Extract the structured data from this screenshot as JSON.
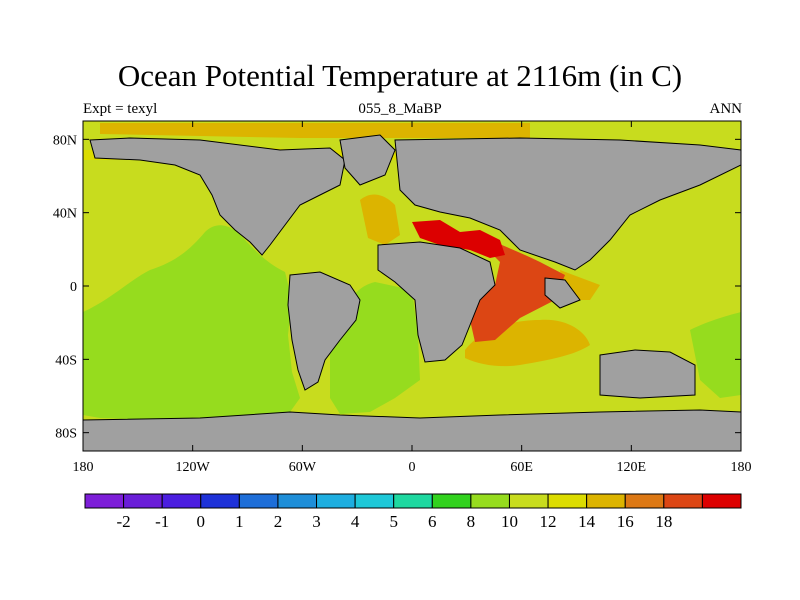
{
  "header": {
    "title": "Ocean Potential Temperature at 2116m (in C)",
    "left_label": "Expt = texyl",
    "center_label": "055_8_MaBP",
    "right_label": "ANN"
  },
  "map": {
    "projection": "cylindrical-equidistant",
    "lon_range": [
      -180,
      180
    ],
    "lat_range": [
      -90,
      90
    ],
    "x_ticks": [
      {
        "value": -180,
        "label": "180"
      },
      {
        "value": -120,
        "label": "120W"
      },
      {
        "value": -60,
        "label": "60W"
      },
      {
        "value": 0,
        "label": "0"
      },
      {
        "value": 60,
        "label": "60E"
      },
      {
        "value": 120,
        "label": "120E"
      },
      {
        "value": 180,
        "label": "180"
      }
    ],
    "y_ticks": [
      {
        "value": 80,
        "label": "80N"
      },
      {
        "value": 40,
        "label": "40N"
      },
      {
        "value": 0,
        "label": "0"
      },
      {
        "value": -40,
        "label": "40S"
      },
      {
        "value": -80,
        "label": "80S"
      }
    ],
    "land_color": "#a0a0a0",
    "coast_color": "#000000"
  },
  "colorbar": {
    "colors": [
      "#7d1ed8",
      "#6a1ed8",
      "#4b1ee0",
      "#1e32d8",
      "#1e6ed8",
      "#1e8ed8",
      "#1eaee0",
      "#1ec8d8",
      "#1ed8a0",
      "#32d21e",
      "#96dc1e",
      "#c8dc1e",
      "#dcdc00",
      "#dcb400",
      "#dc7814",
      "#dc4614",
      "#dc0000"
    ],
    "labels": [
      "-2",
      "-1",
      "0",
      "1",
      "2",
      "3",
      "4",
      "5",
      "6",
      "8",
      "10",
      "12",
      "14",
      "16",
      "18"
    ]
  }
}
